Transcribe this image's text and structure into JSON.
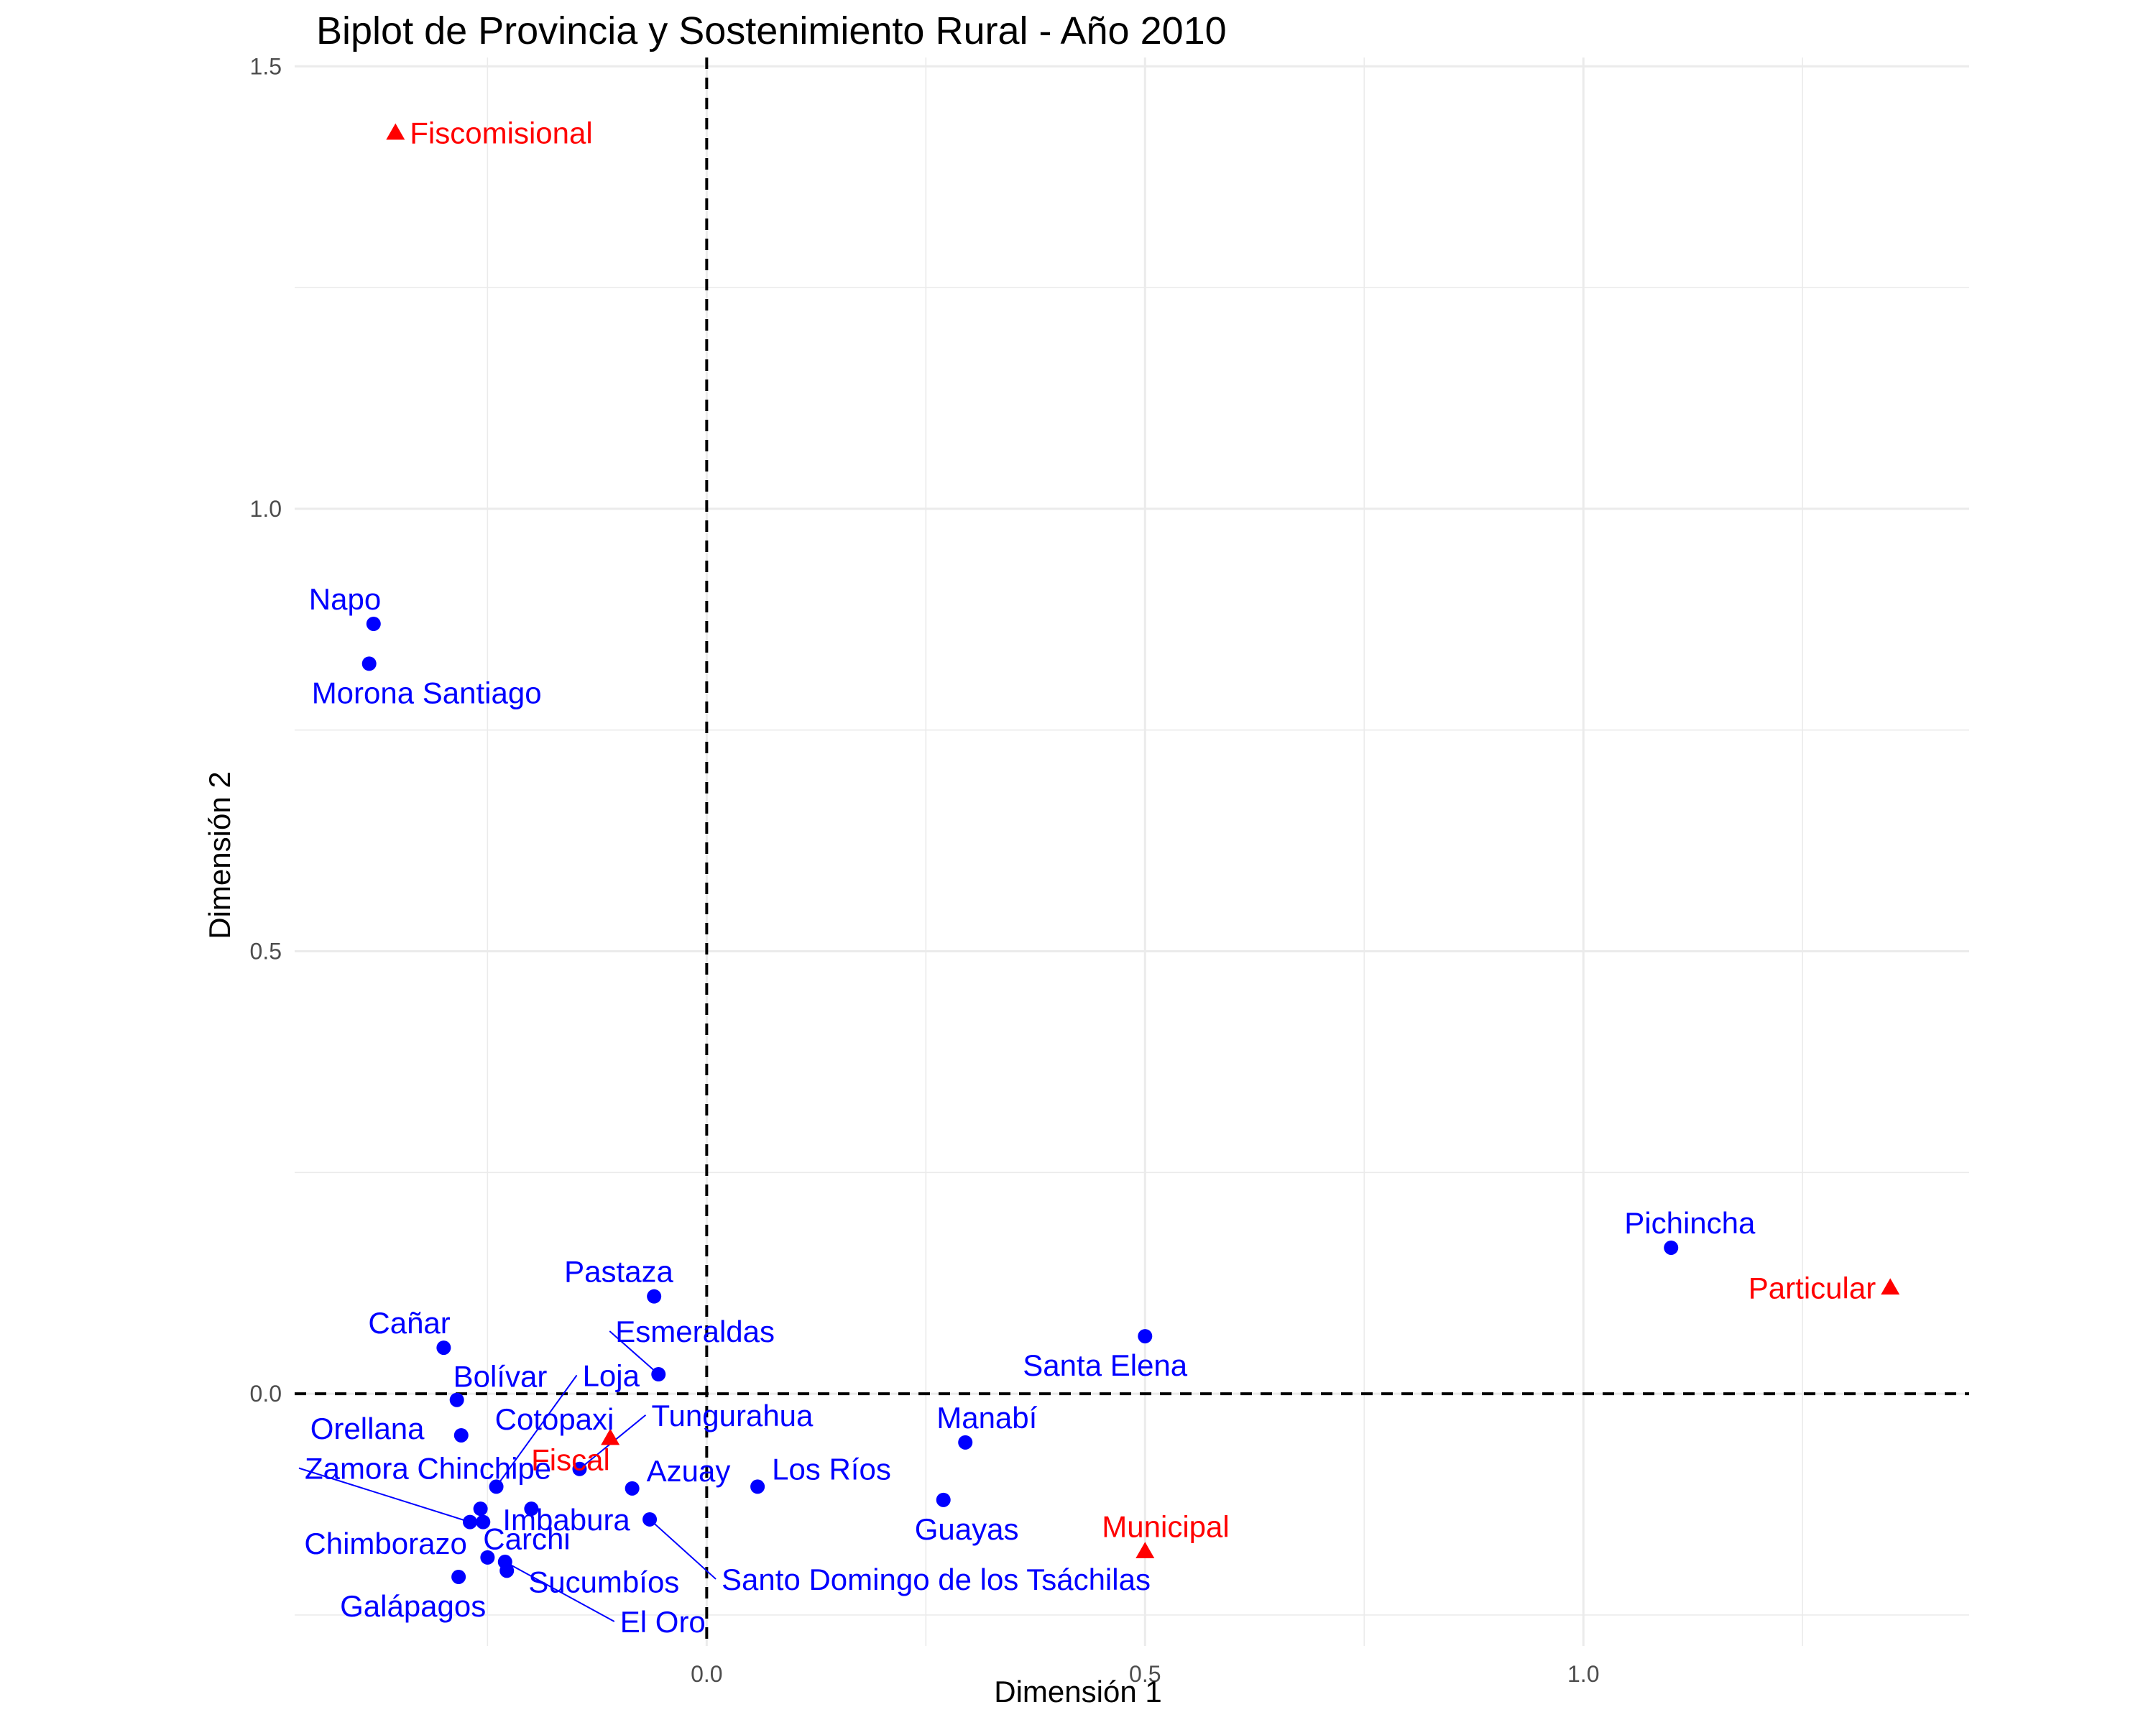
{
  "chart_data": {
    "type": "scatter",
    "title": "Biplot de Provincia y Sostenimiento Rural - Año 2010",
    "xlabel": "Dimensión 1",
    "ylabel": "Dimensión 2",
    "xlim": [
      -0.47,
      1.44
    ],
    "ylim": [
      -0.285,
      1.51
    ],
    "x_ticks": [
      0.0,
      0.5,
      1.0
    ],
    "x_tick_labels": [
      "0.0",
      "0.5",
      "1.0"
    ],
    "y_ticks": [
      0.0,
      0.5,
      1.0,
      1.5
    ],
    "y_tick_labels": [
      "0.0",
      "0.5",
      "1.0",
      "1.5"
    ],
    "grid": true,
    "reference_lines": {
      "x": 0,
      "y": 0,
      "style": "dashed"
    },
    "series": [
      {
        "name": "Provincia",
        "marker": "circle",
        "color": "#0000FF",
        "points": [
          {
            "label": "Napo",
            "x": -0.38,
            "y": 0.87
          },
          {
            "label": "Morona Santiago",
            "x": -0.385,
            "y": 0.825
          },
          {
            "label": "Pichincha",
            "x": 1.1,
            "y": 0.165
          },
          {
            "label": "Pastaza",
            "x": -0.06,
            "y": 0.11
          },
          {
            "label": "Santa Elena",
            "x": 0.5,
            "y": 0.065
          },
          {
            "label": "Cañar",
            "x": -0.3,
            "y": 0.052
          },
          {
            "label": "Esmeraldas",
            "x": -0.055,
            "y": 0.022
          },
          {
            "label": "Bolívar",
            "x": -0.285,
            "y": -0.007
          },
          {
            "label": "Orellana",
            "x": -0.28,
            "y": -0.047
          },
          {
            "label": "Manabí",
            "x": 0.295,
            "y": -0.055
          },
          {
            "label": "Los Ríos",
            "x": 0.058,
            "y": -0.105
          },
          {
            "label": "Azuay",
            "x": -0.085,
            "y": -0.107
          },
          {
            "label": "Guayas",
            "x": 0.27,
            "y": -0.12
          },
          {
            "label": "Loja",
            "x": -0.24,
            "y": -0.105
          },
          {
            "label": "Tungurahua",
            "x": -0.145,
            "y": -0.085
          },
          {
            "label": "Cotopaxi",
            "x": -0.258,
            "y": -0.13
          },
          {
            "label": "Imbabura",
            "x": -0.2,
            "y": -0.13
          },
          {
            "label": "Zamora Chinchipe",
            "x": -0.27,
            "y": -0.145
          },
          {
            "label": "Carchi",
            "x": -0.255,
            "y": -0.145
          },
          {
            "label": "Santo Domingo de los Tsáchilas",
            "x": -0.065,
            "y": -0.142
          },
          {
            "label": "Chimborazo",
            "x": -0.25,
            "y": -0.185
          },
          {
            "label": "El Oro",
            "x": -0.23,
            "y": -0.19
          },
          {
            "label": "Sucumbíos",
            "x": -0.228,
            "y": -0.2
          },
          {
            "label": "Galápagos",
            "x": -0.283,
            "y": -0.207
          }
        ]
      },
      {
        "name": "Sostenimiento",
        "marker": "triangle",
        "color": "#FF0000",
        "points": [
          {
            "label": "Fiscomisional",
            "x": -0.355,
            "y": 1.425
          },
          {
            "label": "Particular",
            "x": 1.35,
            "y": 0.12
          },
          {
            "label": "Fiscal",
            "x": -0.11,
            "y": -0.05
          },
          {
            "label": "Municipal",
            "x": 0.5,
            "y": -0.178
          }
        ]
      }
    ]
  }
}
